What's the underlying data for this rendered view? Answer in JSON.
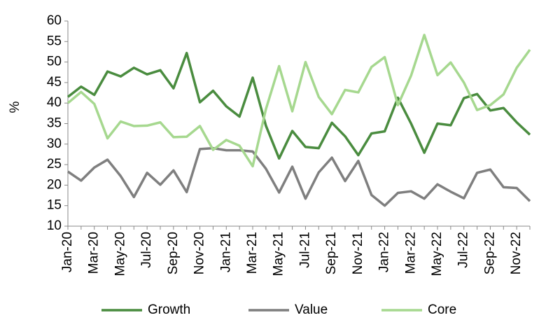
{
  "chart_data": {
    "type": "line",
    "y_label": "%",
    "categories": [
      "Jan-20",
      null,
      "Mar-20",
      null,
      "May-20",
      null,
      "Jul-20",
      null,
      "Sep-20",
      null,
      "Nov-20",
      null,
      "Jan-21",
      null,
      "Mar-21",
      null,
      "May-21",
      null,
      "Jul-21",
      null,
      "Sep-21",
      null,
      "Nov-21",
      null,
      "Jan-22",
      null,
      "Mar-22",
      null,
      "May-22",
      null,
      "Jul-22",
      null,
      "Sep-22",
      null,
      "Nov-22",
      null
    ],
    "series": [
      {
        "name": "Growth",
        "color": "#4a8c3f",
        "values": [
          41.5,
          44,
          42,
          47.7,
          46.5,
          48.6,
          47,
          48,
          43.6,
          52.2,
          40.2,
          43,
          39.2,
          36.7,
          46.2,
          34.5,
          26.5,
          33.2,
          29.3,
          29,
          35.2,
          31.9,
          27.3,
          32.6,
          33.1,
          41.3,
          35,
          27.9,
          35,
          34.6,
          41.2,
          42.2,
          38.2,
          38.8,
          35.3,
          32.3
        ]
      },
      {
        "name": "Value",
        "color": "#7f7f7f",
        "values": [
          23.3,
          21.1,
          24.3,
          26.2,
          22.2,
          17.1,
          23,
          20.1,
          23.6,
          18.3,
          28.8,
          29,
          28.5,
          28.5,
          28.2,
          24,
          18.2,
          24.5,
          16.7,
          23.1,
          26.7,
          21,
          25.9,
          17.6,
          15,
          18.1,
          18.5,
          16.7,
          20.2,
          18.4,
          16.8,
          23,
          23.8,
          19.5,
          19.3,
          16.1
        ]
      },
      {
        "name": "Core",
        "color": "#a6d88f",
        "values": [
          40,
          42.7,
          39.8,
          31.4,
          35.5,
          34.4,
          34.5,
          35.3,
          31.7,
          31.8,
          34.4,
          28.6,
          31,
          29.6,
          24.6,
          38.5,
          49,
          38,
          50,
          41.5,
          37.3,
          43.2,
          42.6,
          48.8,
          51.2,
          39.5,
          46.7,
          56.6,
          46.8,
          49.9,
          45,
          38.3,
          39.5,
          42.1,
          48.6,
          53
        ]
      }
    ],
    "ylim": [
      10,
      60
    ],
    "yticks": [
      10,
      15,
      20,
      25,
      30,
      35,
      40,
      45,
      50,
      55,
      60
    ],
    "grid": false
  }
}
